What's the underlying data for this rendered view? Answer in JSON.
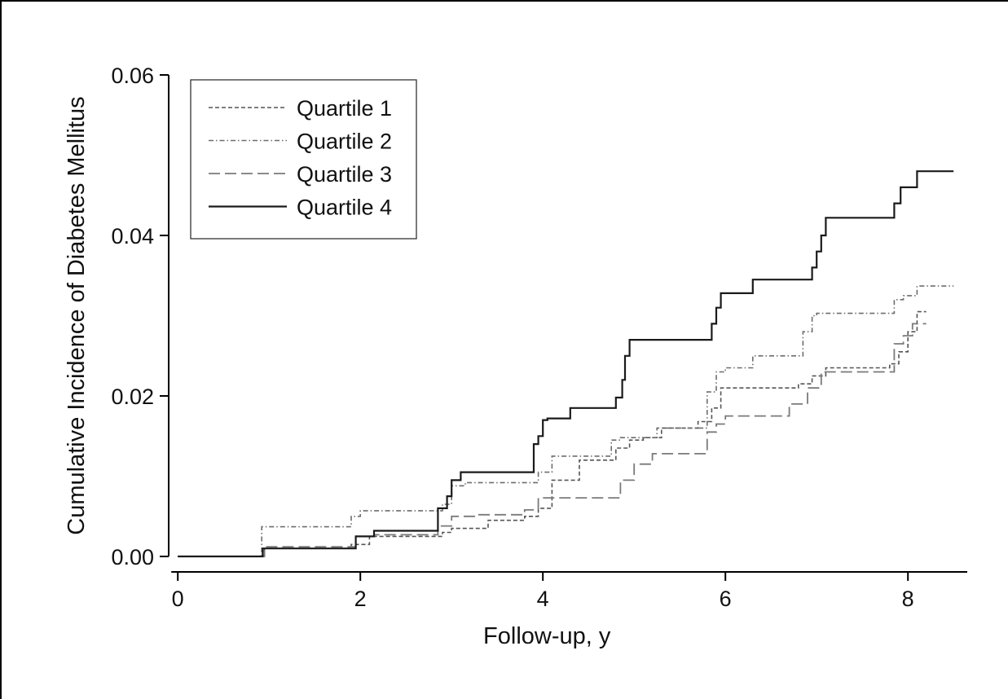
{
  "chart_data": {
    "type": "line",
    "step": true,
    "xlabel": "Follow-up, y",
    "ylabel": "Cumulative Incidence of Diabetes Mellitus",
    "xlim": [
      -0.1,
      8.65
    ],
    "ylim": [
      -0.0002,
      0.0601
    ],
    "xticks": [
      0,
      2,
      4,
      6,
      8
    ],
    "xtick_labels": [
      "0",
      "2",
      "4",
      "6",
      "8"
    ],
    "yticks": [
      0.0,
      0.02,
      0.04,
      0.06
    ],
    "ytick_labels": [
      "0.00",
      "0.02",
      "0.04",
      "0.06"
    ],
    "grid": false,
    "legend_position": "top-left",
    "series": [
      {
        "name": "Quartile 1",
        "color": "#555555",
        "dash": "5,3",
        "width": 1.6,
        "x": [
          0,
          0.95,
          1.9,
          2.1,
          2.9,
          3.0,
          3.4,
          3.8,
          3.95,
          4.1,
          4.4,
          4.8,
          4.95,
          5.1,
          5.3,
          5.7,
          5.85,
          5.95,
          6.3,
          6.8,
          6.95,
          7.1,
          7.8,
          7.9,
          8.0,
          8.1,
          8.2
        ],
        "y": [
          0,
          0.001,
          0.0015,
          0.0025,
          0.003,
          0.0035,
          0.0045,
          0.005,
          0.006,
          0.0095,
          0.012,
          0.0135,
          0.0145,
          0.0148,
          0.016,
          0.0168,
          0.0185,
          0.021,
          0.021,
          0.0215,
          0.0225,
          0.0235,
          0.024,
          0.0255,
          0.028,
          0.0305,
          0.0305
        ]
      },
      {
        "name": "Quartile 2",
        "color": "#6d6d6d",
        "dash": "6,3,1.5,3",
        "width": 1.6,
        "x": [
          0,
          0.92,
          1.9,
          2.0,
          2.9,
          3.0,
          3.15,
          3.95,
          4.1,
          4.75,
          4.85,
          5.25,
          5.8,
          5.9,
          6.0,
          6.3,
          6.85,
          6.95,
          7.0,
          7.85,
          7.95,
          8.1,
          8.5
        ],
        "y": [
          0,
          0.0037,
          0.005,
          0.0057,
          0.0065,
          0.0088,
          0.0092,
          0.0105,
          0.0125,
          0.0145,
          0.0148,
          0.016,
          0.0205,
          0.023,
          0.0235,
          0.025,
          0.028,
          0.03,
          0.0303,
          0.032,
          0.0325,
          0.0337,
          0.0337
        ]
      },
      {
        "name": "Quartile 3",
        "color": "#7a7a7a",
        "dash": "14,6",
        "width": 1.8,
        "x": [
          0,
          0.95,
          1.95,
          2.15,
          2.85,
          3.0,
          3.3,
          3.8,
          3.95,
          4.85,
          5.0,
          5.2,
          5.8,
          5.9,
          6.0,
          6.7,
          6.9,
          7.05,
          7.85,
          7.95,
          8.05,
          8.2
        ],
        "y": [
          0,
          0.0012,
          0.0025,
          0.0027,
          0.0038,
          0.005,
          0.0052,
          0.0058,
          0.0073,
          0.0095,
          0.0115,
          0.0128,
          0.0155,
          0.0165,
          0.0175,
          0.019,
          0.021,
          0.023,
          0.0265,
          0.0275,
          0.029,
          0.029
        ]
      },
      {
        "name": "Quartile 4",
        "color": "#1a1a1a",
        "dash": "",
        "width": 2.2,
        "x": [
          0,
          0.93,
          1.95,
          2.15,
          2.85,
          2.95,
          3.0,
          3.1,
          3.9,
          3.95,
          4.0,
          4.05,
          4.3,
          4.8,
          4.87,
          4.9,
          4.95,
          5.85,
          5.9,
          5.95,
          6.3,
          6.95,
          7.0,
          7.05,
          7.1,
          7.85,
          7.92,
          8.0,
          8.1,
          8.5
        ],
        "y": [
          0,
          0.001,
          0.0025,
          0.0032,
          0.006,
          0.0075,
          0.0095,
          0.0105,
          0.014,
          0.015,
          0.017,
          0.0172,
          0.0185,
          0.0198,
          0.022,
          0.025,
          0.027,
          0.029,
          0.031,
          0.0328,
          0.0345,
          0.036,
          0.038,
          0.04,
          0.0422,
          0.044,
          0.046,
          0.046,
          0.048,
          0.048
        ]
      }
    ]
  }
}
